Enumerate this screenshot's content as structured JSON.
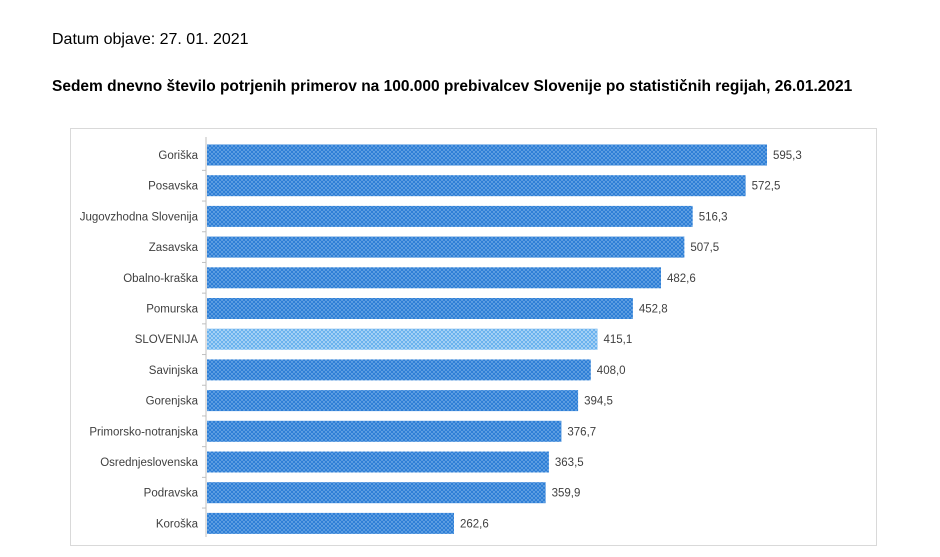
{
  "page": {
    "date_line": "Datum objave: 27. 01. 2021"
  },
  "chart_data": {
    "type": "bar",
    "orientation": "horizontal",
    "title": "Sedem dnevno število potrjenih primerov na 100.000 prebivalcev Slovenije po statističnih regijah, 26.01.2021",
    "xlabel": "",
    "ylabel": "",
    "xlim": [
      0,
      700
    ],
    "grid": false,
    "legend": "none",
    "categories": [
      "Goriška",
      "Posavska",
      "Jugovzhodna Slovenija",
      "Zasavska",
      "Obalno-kraška",
      "Pomurska",
      "SLOVENIJA",
      "Savinjska",
      "Gorenjska",
      "Primorsko-notranjska",
      "Osrednjeslovenska",
      "Podravska",
      "Koroška"
    ],
    "values": [
      595.3,
      572.5,
      516.3,
      507.5,
      482.6,
      452.8,
      415.1,
      408.0,
      394.5,
      376.7,
      363.5,
      359.9,
      262.6
    ],
    "value_labels": [
      "595,3",
      "572,5",
      "516,3",
      "507,5",
      "482,6",
      "452,8",
      "415,1",
      "408,0",
      "394,5",
      "376,7",
      "363,5",
      "359,9",
      "262,6"
    ],
    "highlight_category": "SLOVENIJA",
    "colors": {
      "bar": "#2f7fd6",
      "bar_dots": "#9cc8f2",
      "highlight": "#6ab2ee",
      "highlight_dots": "#e6f3fd",
      "label": "#404040"
    }
  }
}
